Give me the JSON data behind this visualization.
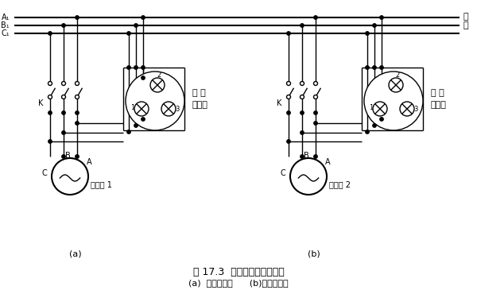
{
  "title": "图 17.3  三相同步发电机整步",
  "subtitle": "(a)  灯光明暗法      (b)灯光旋转法",
  "label_a": "(a)",
  "label_b": "(b)",
  "bg_color": "#ffffff",
  "line_color": "#000000",
  "sync_line1": "同 步",
  "sync_line2": "指示灯",
  "gen1_label": "发电机 1",
  "gen2_label": "发电机 2",
  "k_label": "K",
  "c_label": "C",
  "b_label": "B",
  "a_label": "A",
  "elec_label": "电",
  "net_label": "网",
  "bus_a": "A₁",
  "bus_b": "B₁",
  "bus_c": "C₁"
}
